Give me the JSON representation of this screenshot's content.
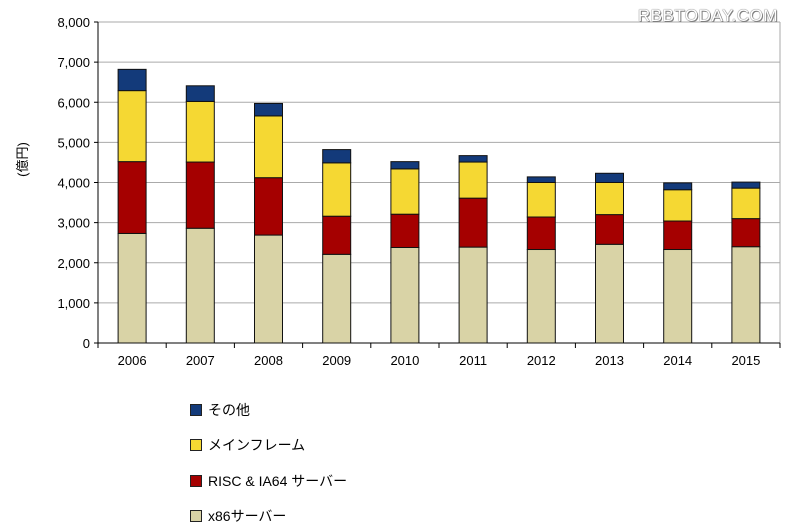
{
  "watermark": "RBBTODAY.COM",
  "chart_data": {
    "type": "bar",
    "stacked": true,
    "title": "",
    "xlabel": "",
    "ylabel": "(億円)",
    "ylim": [
      0,
      8000
    ],
    "yticks": [
      0,
      1000,
      2000,
      3000,
      4000,
      5000,
      6000,
      7000,
      8000
    ],
    "ytick_labels": [
      "0",
      "1,000",
      "2,000",
      "3,000",
      "4,000",
      "5,000",
      "6,000",
      "7,000",
      "8,000"
    ],
    "grid": true,
    "legend_position": "bottom-left",
    "categories": [
      "2006",
      "2007",
      "2008",
      "2009",
      "2010",
      "2011",
      "2012",
      "2013",
      "2014",
      "2015"
    ],
    "series": [
      {
        "name": "x86サーバー",
        "color": "#d9d3a6",
        "values": [
          2730,
          2860,
          2690,
          2210,
          2380,
          2390,
          2330,
          2460,
          2330,
          2400
        ]
      },
      {
        "name": "RISC & IA64 サーバー",
        "color": "#a50000",
        "values": [
          1790,
          1650,
          1430,
          950,
          830,
          1220,
          810,
          740,
          710,
          700
        ]
      },
      {
        "name": "メインフレーム",
        "color": "#f5d833",
        "values": [
          1770,
          1510,
          1540,
          1330,
          1130,
          900,
          860,
          800,
          780,
          760
        ]
      },
      {
        "name": "その他",
        "color": "#133a7a",
        "values": [
          530,
          390,
          310,
          330,
          180,
          160,
          140,
          230,
          170,
          150
        ]
      }
    ]
  }
}
